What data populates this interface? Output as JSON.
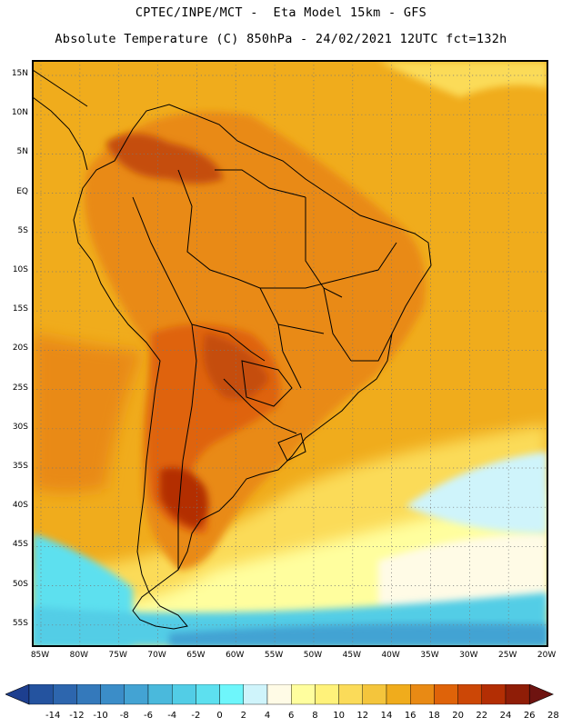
{
  "header": {
    "line1": "CPTEC/INPE/MCT -  Eta Model 15km - GFS",
    "line2": "Absolute Temperature (C) 850hPa - 24/02/2021 12UTC fct=132h"
  },
  "map": {
    "latitude_labels": [
      "15N",
      "10N",
      "5N",
      "EQ",
      "5S",
      "10S",
      "15S",
      "20S",
      "25S",
      "30S",
      "35S",
      "40S",
      "45S",
      "50S",
      "55S"
    ],
    "longitude_labels": [
      "85W",
      "80W",
      "75W",
      "70W",
      "65W",
      "60W",
      "55W",
      "50W",
      "45W",
      "40W",
      "35W",
      "30W",
      "25W",
      "20W"
    ],
    "extent": {
      "lon_min": -86,
      "lon_max": -20,
      "lat_min": -58,
      "lat_max": 17
    }
  },
  "colorbar": {
    "ticks": [
      "-14",
      "-12",
      "-10",
      "-8",
      "-6",
      "-4",
      "-2",
      "0",
      "2",
      "4",
      "6",
      "8",
      "10",
      "12",
      "14",
      "16",
      "18",
      "20",
      "22",
      "24",
      "26",
      "28"
    ],
    "colors": [
      "#1d3f8f",
      "#24539f",
      "#2d66ae",
      "#3479bb",
      "#3b8dc8",
      "#43a3d3",
      "#4ab9dc",
      "#52cde6",
      "#5de0ef",
      "#6ef6fb",
      "#cff4fb",
      "#fffbe6",
      "#fffe9e",
      "#fff27a",
      "#fbdb59",
      "#f4c53c",
      "#f0ac1c",
      "#e98a14",
      "#df6309",
      "#cc4706",
      "#b32e04",
      "#8f1d07",
      "#6e1310"
    ]
  },
  "colors": {
    "land_hot": "#c54d08",
    "ocean_warm": "#f0ac1c",
    "cold_south": "#4ab9dc"
  }
}
